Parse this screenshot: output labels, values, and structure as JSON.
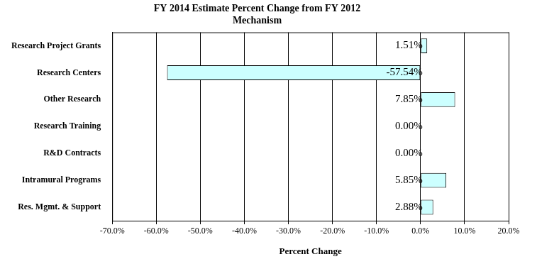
{
  "chart_data": {
    "type": "bar",
    "orientation": "horizontal",
    "title": "FY 2014 Estimate Percent Change from FY 2012",
    "subtitle": "Mechanism",
    "xlabel": "Percent Change",
    "categories": [
      "Research Project Grants",
      "Research Centers",
      "Other Research",
      "Research Training",
      "R&D Contracts",
      "Intramural Programs",
      "Res. Mgmt. & Support"
    ],
    "values": [
      1.51,
      -57.54,
      7.85,
      0.0,
      0.0,
      5.85,
      2.88
    ],
    "value_labels": [
      "1.51%",
      "-57.54%",
      "7.85%",
      "0.00%",
      "0.00%",
      "5.85%",
      "2.88%"
    ],
    "color": "#ccffff",
    "xlim": [
      -70,
      20
    ],
    "xticks": [
      {
        "value": -70,
        "label": "-70.0%"
      },
      {
        "value": -60,
        "label": "-60.0%"
      },
      {
        "value": -50,
        "label": "-50.0%"
      },
      {
        "value": -40,
        "label": "-40.0%"
      },
      {
        "value": -30,
        "label": "-30.0%"
      },
      {
        "value": -20,
        "label": "-20.0%"
      },
      {
        "value": -10,
        "label": "-10.0%"
      },
      {
        "value": 0,
        "label": "0.0%"
      },
      {
        "value": 10,
        "label": "10.0%"
      },
      {
        "value": 20,
        "label": "20.0%"
      }
    ],
    "grid": true,
    "data_labels": true
  }
}
